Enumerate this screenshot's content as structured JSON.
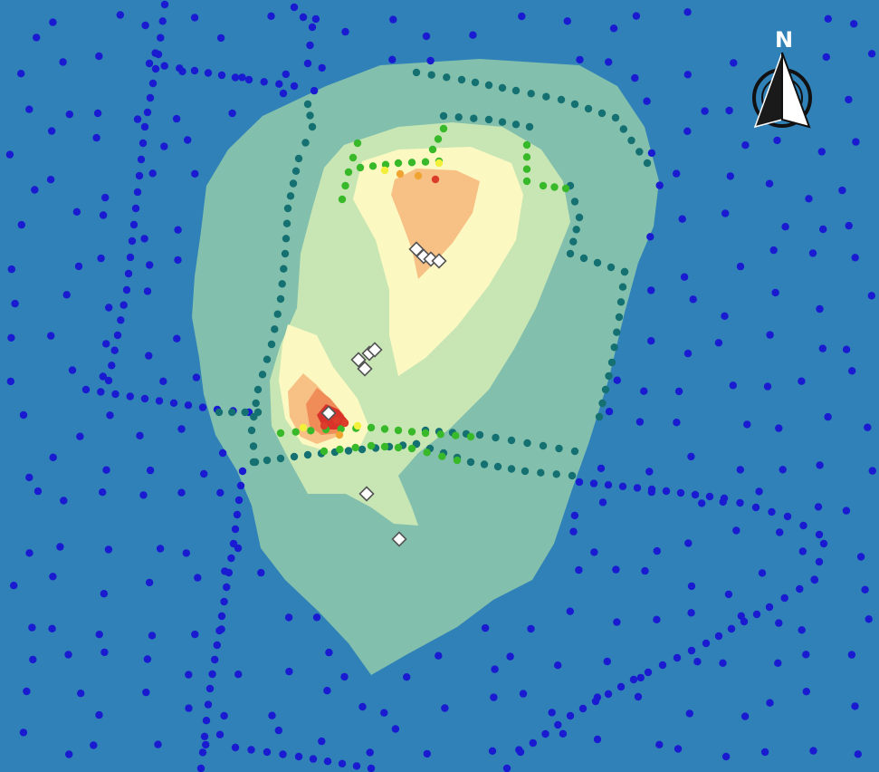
{
  "map": {
    "north_label": "N",
    "icons": {
      "north_arrow": "north-arrow-icon",
      "sample_site": "diamond-marker-icon",
      "sample_point": "circle-marker-icon"
    },
    "colors": {
      "water": "#2f81b8",
      "zone_outer": "#82bfad",
      "zone_light_green": "#c8e6b4",
      "zone_cream": "#fcf8c2",
      "zone_orange": "#f7c186",
      "zone_dark_orange": "#ef8c58",
      "zone_red": "#d8322b",
      "point_far": "#1a1ad0",
      "point_mid": "#157072",
      "point_near": "#38b92a",
      "point_yellow": "#f2f03a",
      "point_orange": "#f0a533",
      "point_red": "#da3d29",
      "site_fill": "#ffffff",
      "site_stroke": "#555555"
    }
  }
}
